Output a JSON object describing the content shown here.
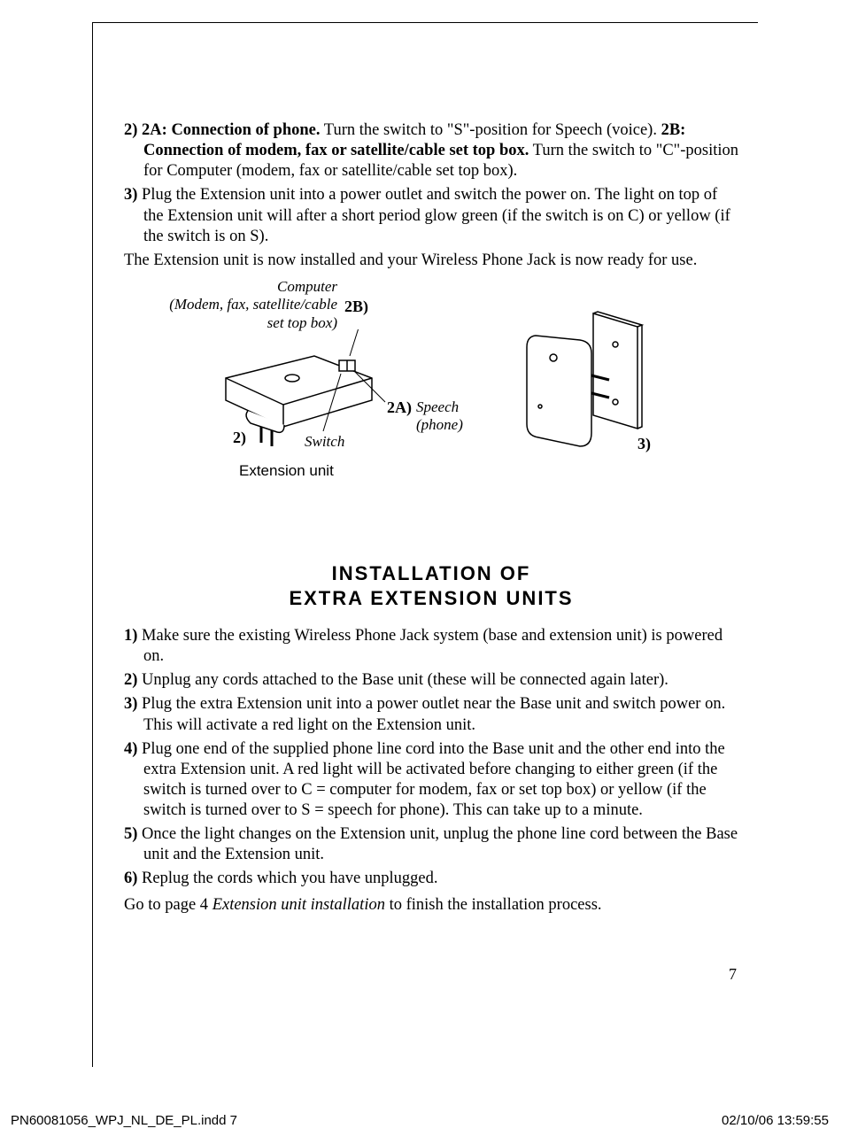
{
  "top_paragraphs": [
    {
      "num": "2)",
      "bold_prefix": "2A: Connection of phone.",
      "text": " Turn the switch to \"S\"-position for Speech (voice). ",
      "bold_prefix2": "2B: Connection of modem, fax or satellite/cable set top box.",
      "text2": " Turn the switch to \"C\"-position for Computer (modem, fax or satellite/cable set top box)."
    },
    {
      "num": "3)",
      "bold_prefix": "",
      "text": "Plug the Extension unit into a power outlet and switch the power on. The light on top of the Extension unit will after a short period glow green (if the switch is on C) or yellow (if the switch is on S)."
    }
  ],
  "conclusion_text": "The Extension unit is now installed and your Wireless Phone Jack is now ready for use.",
  "diagram": {
    "computer_label": "Computer\n(Modem, fax, satellite/cable\nset top box)",
    "label_2B": "2B)",
    "label_2A": "2A)",
    "speech_label": "Speech\n(phone)",
    "label_2": "2)",
    "switch_label": "Switch",
    "label_3": "3)",
    "extension_label": "Extension unit"
  },
  "section_title_line1": "INSTALLATION OF",
  "section_title_line2": "EXTRA EXTENSION UNITS",
  "steps": [
    {
      "num": "1)",
      "text": "Make sure the existing Wireless Phone Jack system (base and extension unit) is powered on."
    },
    {
      "num": "2)",
      "text": "Unplug any cords attached to the Base unit (these will be connected again later)."
    },
    {
      "num": "3)",
      "text": "Plug the extra Extension unit into a power outlet near the Base unit and switch power on. This will activate a red light on the Extension unit."
    },
    {
      "num": "4)",
      "text": "Plug one end of the supplied phone line cord into the Base unit and the other end into the extra Extension unit. A red light will be activated before changing to either green (if the switch is turned over to C = computer for modem, fax or set top box) or yellow (if the switch is turned over to S = speech for phone). This can take up to a minute."
    },
    {
      "num": "5)",
      "text": "Once the light changes on the Extension unit, unplug the phone line cord between the Base unit and the Extension unit."
    },
    {
      "num": "6)",
      "text": "Replug the cords which you have unplugged."
    }
  ],
  "final_pre": "Go to page 4 ",
  "final_italic": "Extension unit installation",
  "final_post": " to finish the installation process.",
  "page_number": "7",
  "footer_left": "PN60081056_WPJ_NL_DE_PL.indd   7",
  "footer_right": "02/10/06   13:59:55"
}
